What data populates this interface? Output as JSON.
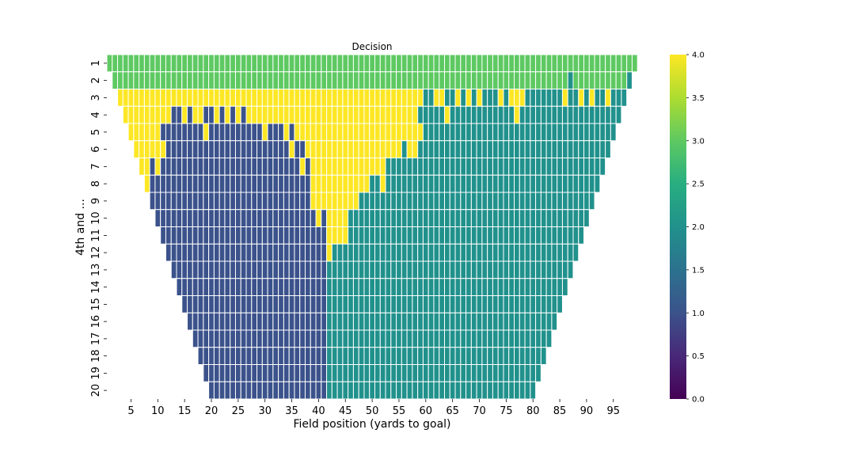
{
  "chart_data": {
    "type": "heatmap",
    "title": "Decision",
    "xlabel": "Field position (yards to goal)",
    "ylabel": "4th and ...",
    "x_range": [
      1,
      99
    ],
    "y_categories": [
      "1",
      "2",
      "3",
      "4",
      "5",
      "6",
      "7",
      "8",
      "9",
      "10",
      "11",
      "12",
      "13",
      "14",
      "15",
      "16",
      "17",
      "18",
      "19",
      "20"
    ],
    "x_tick_labels": [
      "5",
      "10",
      "15",
      "20",
      "25",
      "30",
      "35",
      "40",
      "45",
      "50",
      "55",
      "60",
      "65",
      "70",
      "75",
      "80",
      "85",
      "90",
      "95"
    ],
    "colorbar": {
      "min": 0.0,
      "max": 4.0,
      "tick_labels": [
        "0.0",
        "0.5",
        "1.0",
        "1.5",
        "2.0",
        "2.5",
        "3.0",
        "3.5",
        "4.0"
      ]
    },
    "colormap": "viridis",
    "value_colors": {
      "1": "#3b528b",
      "2": "#21918c",
      "3": "#5ec962",
      "4": "#fde725"
    },
    "rows": [
      {
        "down": "1",
        "start": 1,
        "end": 99,
        "runs": [
          [
            1,
            99,
            3
          ]
        ]
      },
      {
        "down": "2",
        "start": 2,
        "end": 98,
        "runs": [
          [
            2,
            86,
            3
          ],
          [
            87,
            87,
            2
          ],
          [
            88,
            97,
            3
          ],
          [
            98,
            98,
            2
          ]
        ]
      },
      {
        "down": "3",
        "start": 3,
        "end": 97,
        "runs": [
          [
            3,
            59,
            4
          ],
          [
            60,
            61,
            2
          ],
          [
            62,
            63,
            4
          ],
          [
            64,
            65,
            2
          ],
          [
            66,
            66,
            4
          ],
          [
            67,
            67,
            2
          ],
          [
            68,
            68,
            4
          ],
          [
            69,
            69,
            2
          ],
          [
            70,
            70,
            4
          ],
          [
            71,
            73,
            2
          ],
          [
            74,
            74,
            4
          ],
          [
            75,
            75,
            2
          ],
          [
            76,
            78,
            4
          ],
          [
            79,
            85,
            2
          ],
          [
            86,
            86,
            4
          ],
          [
            87,
            88,
            2
          ],
          [
            89,
            89,
            4
          ],
          [
            90,
            90,
            2
          ],
          [
            91,
            91,
            4
          ],
          [
            92,
            93,
            2
          ],
          [
            94,
            94,
            4
          ],
          [
            95,
            97,
            2
          ]
        ]
      },
      {
        "down": "4",
        "start": 4,
        "end": 96,
        "runs": [
          [
            4,
            12,
            4
          ],
          [
            13,
            14,
            1
          ],
          [
            15,
            15,
            4
          ],
          [
            16,
            16,
            1
          ],
          [
            17,
            18,
            4
          ],
          [
            19,
            20,
            1
          ],
          [
            21,
            21,
            4
          ],
          [
            22,
            22,
            1
          ],
          [
            23,
            23,
            4
          ],
          [
            24,
            24,
            1
          ],
          [
            25,
            25,
            4
          ],
          [
            26,
            26,
            1
          ],
          [
            27,
            58,
            4
          ],
          [
            59,
            63,
            2
          ],
          [
            64,
            64,
            4
          ],
          [
            65,
            76,
            2
          ],
          [
            77,
            77,
            4
          ],
          [
            78,
            96,
            2
          ]
        ]
      },
      {
        "down": "5",
        "start": 5,
        "end": 95,
        "runs": [
          [
            5,
            10,
            4
          ],
          [
            11,
            18,
            1
          ],
          [
            19,
            19,
            4
          ],
          [
            20,
            29,
            1
          ],
          [
            30,
            30,
            4
          ],
          [
            31,
            33,
            1
          ],
          [
            34,
            34,
            4
          ],
          [
            35,
            35,
            1
          ],
          [
            36,
            59,
            4
          ],
          [
            60,
            95,
            2
          ]
        ]
      },
      {
        "down": "6",
        "start": 6,
        "end": 94,
        "runs": [
          [
            6,
            11,
            4
          ],
          [
            12,
            34,
            1
          ],
          [
            35,
            35,
            4
          ],
          [
            36,
            37,
            1
          ],
          [
            38,
            38,
            4
          ],
          [
            39,
            55,
            4
          ],
          [
            56,
            56,
            2
          ],
          [
            57,
            58,
            4
          ],
          [
            59,
            94,
            2
          ]
        ]
      },
      {
        "down": "7",
        "start": 7,
        "end": 93,
        "runs": [
          [
            7,
            8,
            4
          ],
          [
            9,
            9,
            1
          ],
          [
            10,
            10,
            4
          ],
          [
            11,
            36,
            1
          ],
          [
            37,
            37,
            4
          ],
          [
            38,
            38,
            1
          ],
          [
            39,
            52,
            4
          ],
          [
            53,
            93,
            2
          ]
        ]
      },
      {
        "down": "8",
        "start": 8,
        "end": 92,
        "runs": [
          [
            8,
            8,
            4
          ],
          [
            9,
            38,
            1
          ],
          [
            39,
            49,
            4
          ],
          [
            50,
            51,
            2
          ],
          [
            52,
            52,
            4
          ],
          [
            53,
            92,
            2
          ]
        ]
      },
      {
        "down": "9",
        "start": 9,
        "end": 91,
        "runs": [
          [
            9,
            38,
            1
          ],
          [
            39,
            47,
            4
          ],
          [
            48,
            91,
            2
          ]
        ]
      },
      {
        "down": "10",
        "start": 10,
        "end": 90,
        "runs": [
          [
            10,
            39,
            1
          ],
          [
            40,
            40,
            4
          ],
          [
            41,
            41,
            1
          ],
          [
            42,
            45,
            4
          ],
          [
            46,
            90,
            2
          ]
        ]
      },
      {
        "down": "11",
        "start": 11,
        "end": 89,
        "runs": [
          [
            11,
            41,
            1
          ],
          [
            42,
            45,
            4
          ],
          [
            46,
            89,
            2
          ]
        ]
      },
      {
        "down": "12",
        "start": 12,
        "end": 88,
        "runs": [
          [
            12,
            41,
            1
          ],
          [
            42,
            42,
            4
          ],
          [
            43,
            88,
            2
          ]
        ]
      },
      {
        "down": "13",
        "start": 13,
        "end": 87,
        "runs": [
          [
            13,
            41,
            1
          ],
          [
            42,
            87,
            2
          ]
        ]
      },
      {
        "down": "14",
        "start": 14,
        "end": 86,
        "runs": [
          [
            14,
            41,
            1
          ],
          [
            42,
            86,
            2
          ]
        ]
      },
      {
        "down": "15",
        "start": 15,
        "end": 85,
        "runs": [
          [
            15,
            41,
            1
          ],
          [
            42,
            85,
            2
          ]
        ]
      },
      {
        "down": "16",
        "start": 16,
        "end": 84,
        "runs": [
          [
            16,
            41,
            1
          ],
          [
            42,
            84,
            2
          ]
        ]
      },
      {
        "down": "17",
        "start": 17,
        "end": 83,
        "runs": [
          [
            17,
            41,
            1
          ],
          [
            42,
            83,
            2
          ]
        ]
      },
      {
        "down": "18",
        "start": 18,
        "end": 82,
        "runs": [
          [
            18,
            41,
            1
          ],
          [
            42,
            82,
            2
          ]
        ]
      },
      {
        "down": "19",
        "start": 19,
        "end": 81,
        "runs": [
          [
            19,
            41,
            1
          ],
          [
            42,
            81,
            2
          ]
        ]
      },
      {
        "down": "20",
        "start": 20,
        "end": 80,
        "runs": [
          [
            20,
            41,
            1
          ],
          [
            42,
            80,
            2
          ]
        ]
      }
    ]
  }
}
